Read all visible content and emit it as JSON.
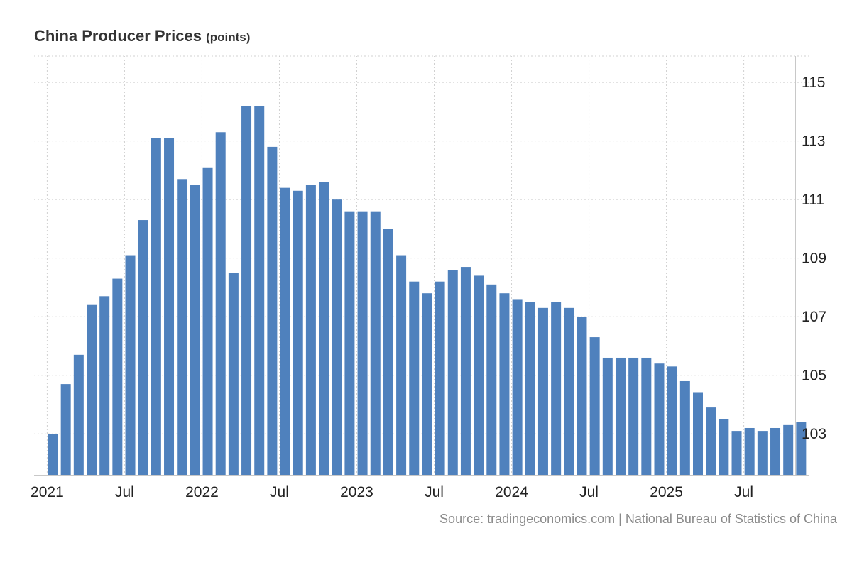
{
  "chart_data": {
    "type": "bar",
    "title": "China Producer Prices",
    "unit": "(points)",
    "source": "Source: tradingeconomics.com | National Bureau of Statistics of China",
    "ylim": [
      101.6,
      115.9
    ],
    "yticks": [
      103,
      105,
      107,
      109,
      111,
      113,
      115
    ],
    "xticks": [
      {
        "label": "2021",
        "index": 0
      },
      {
        "label": "Jul",
        "index": 6
      },
      {
        "label": "2022",
        "index": 12
      },
      {
        "label": "Jul",
        "index": 18
      },
      {
        "label": "2023",
        "index": 24
      },
      {
        "label": "Jul",
        "index": 30
      },
      {
        "label": "2024",
        "index": 36
      },
      {
        "label": "Jul",
        "index": 42
      },
      {
        "label": "2025",
        "index": 48
      },
      {
        "label": "Jul",
        "index": 54
      }
    ],
    "start_period": "2021-01",
    "color": "#4f81bd",
    "categories": [
      "2021-01",
      "2021-02",
      "2021-03",
      "2021-04",
      "2021-05",
      "2021-06",
      "2021-07",
      "2021-08",
      "2021-09",
      "2021-10",
      "2021-11",
      "2021-12",
      "2022-01",
      "2022-02",
      "2022-03",
      "2022-04",
      "2022-05",
      "2022-06",
      "2022-07",
      "2022-08",
      "2022-09",
      "2022-10",
      "2022-11",
      "2022-12",
      "2023-01",
      "2023-02",
      "2023-03",
      "2023-04",
      "2023-05",
      "2023-06",
      "2023-07",
      "2023-08",
      "2023-09",
      "2023-10",
      "2023-11",
      "2023-12",
      "2024-01",
      "2024-02",
      "2024-03",
      "2024-04",
      "2024-05",
      "2024-06",
      "2024-07",
      "2024-08",
      "2024-09",
      "2024-10",
      "2024-11",
      "2024-12",
      "2025-01",
      "2025-02",
      "2025-03",
      "2025-04",
      "2025-05",
      "2025-06",
      "2025-07",
      "2025-08",
      "2025-09",
      "2025-10",
      "2025-11"
    ],
    "values": [
      103.0,
      104.7,
      105.7,
      107.4,
      107.7,
      108.3,
      109.1,
      110.3,
      113.1,
      113.1,
      111.7,
      111.5,
      112.1,
      113.3,
      108.5,
      114.2,
      114.2,
      112.8,
      111.4,
      111.3,
      111.5,
      111.6,
      111.0,
      110.6,
      110.6,
      110.6,
      110.0,
      109.1,
      108.2,
      107.8,
      108.2,
      108.6,
      108.7,
      108.4,
      108.1,
      107.8,
      107.6,
      107.5,
      107.3,
      107.5,
      107.3,
      107.0,
      106.3,
      105.6,
      105.6,
      105.6,
      105.6,
      105.4,
      105.3,
      104.8,
      104.4,
      103.9,
      103.5,
      103.1,
      103.2,
      103.1,
      103.2,
      103.3,
      103.4
    ]
  }
}
